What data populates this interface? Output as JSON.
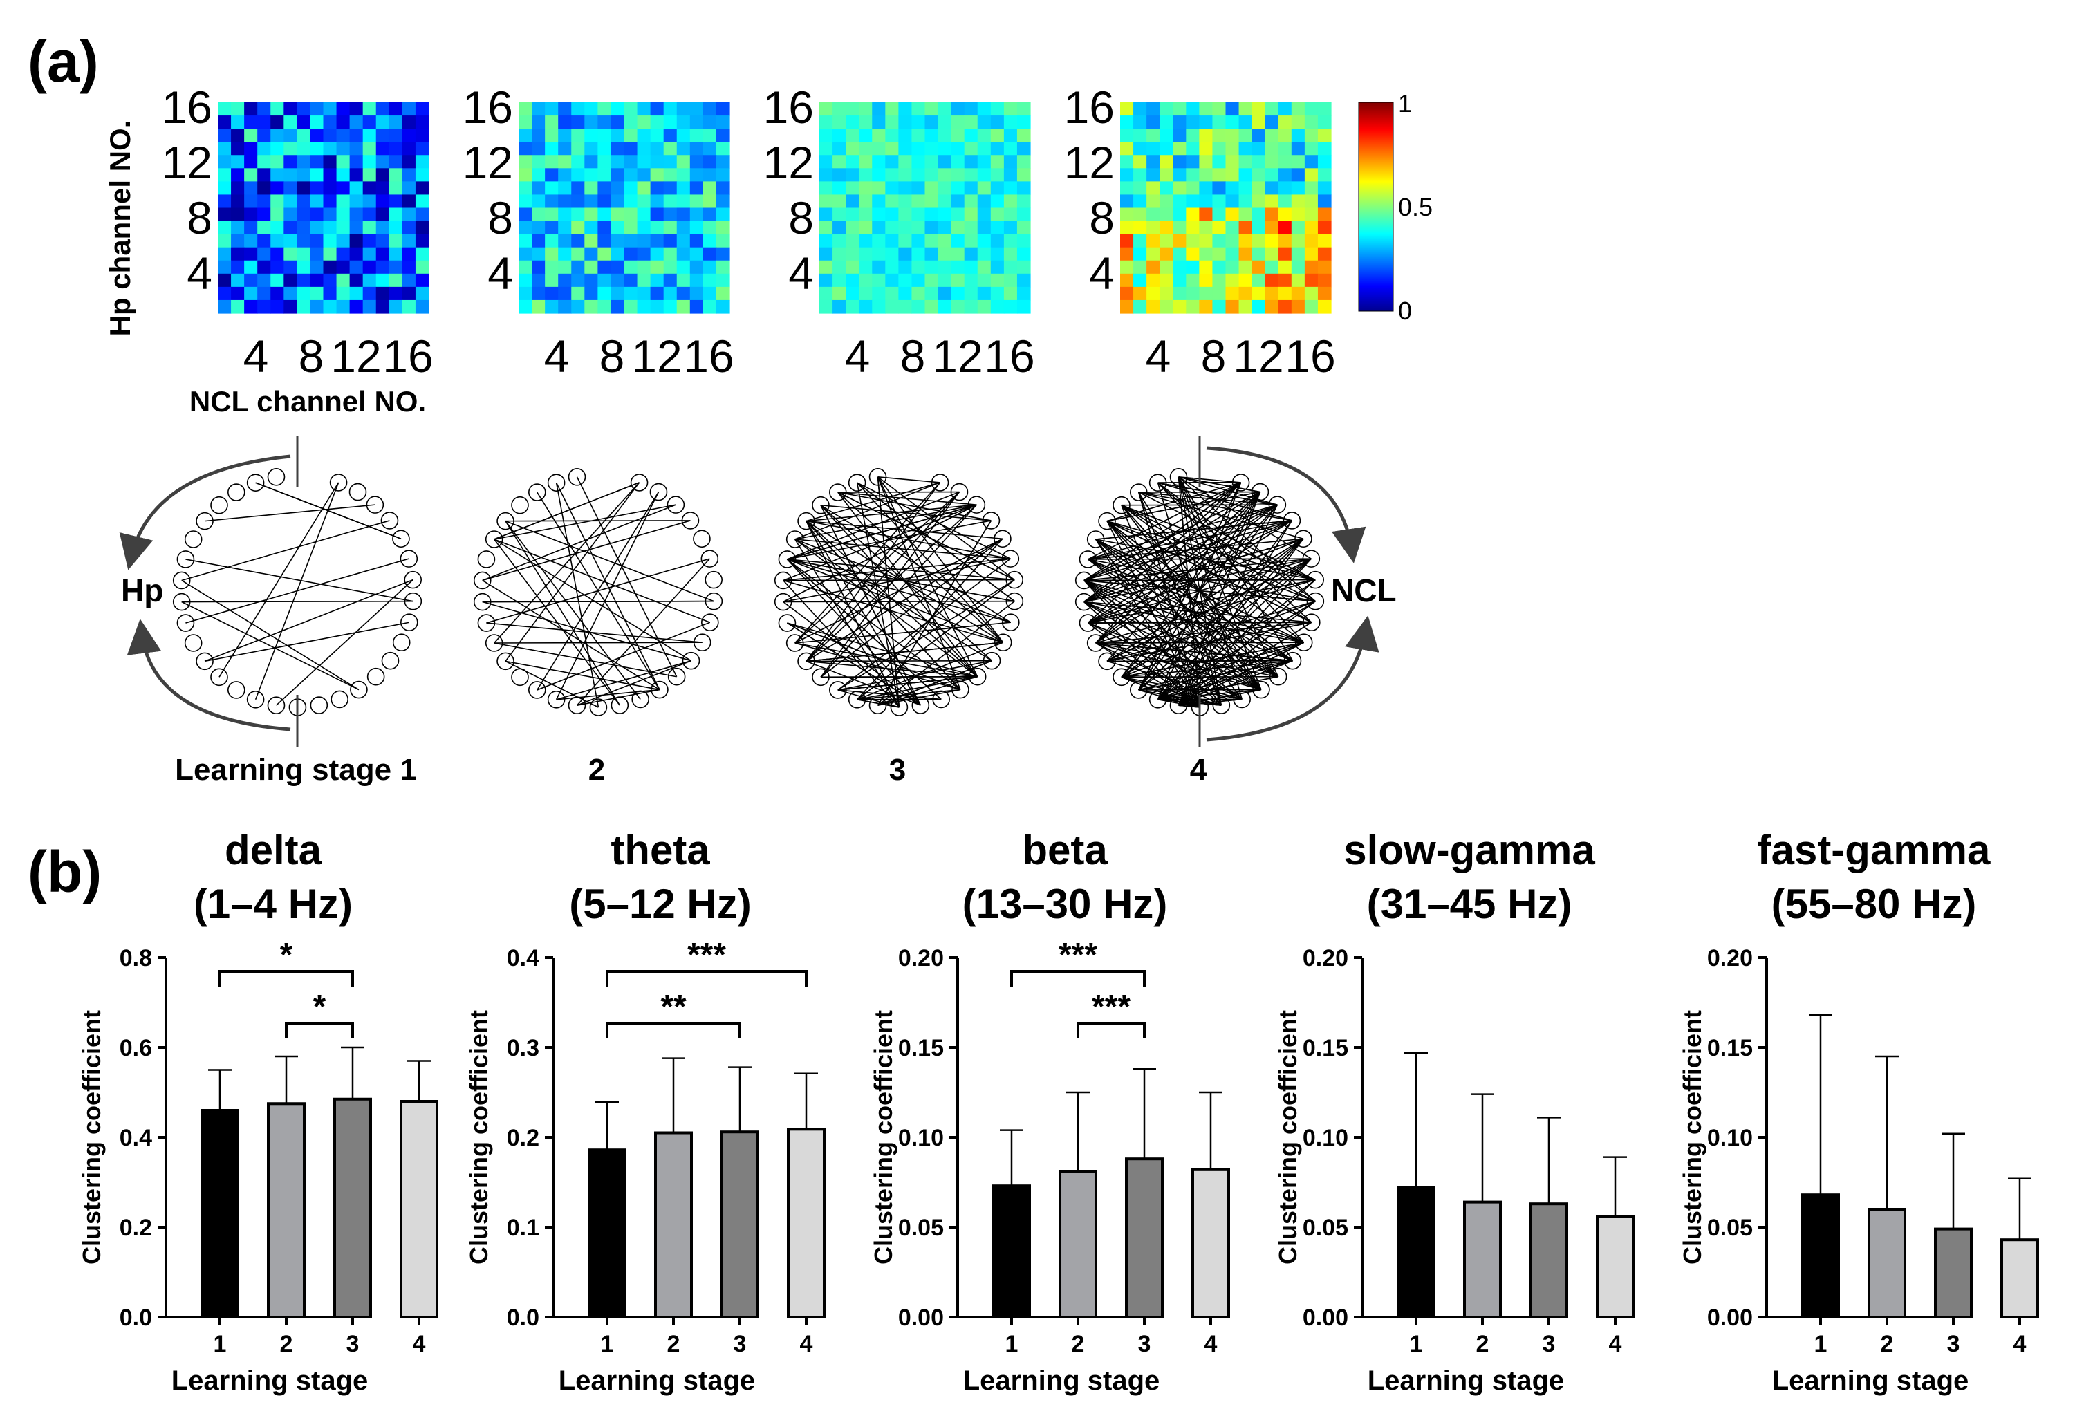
{
  "panel_a": {
    "label": "(a)",
    "y_axis_title": "Hp channel NO.",
    "x_axis_title": "NCL channel NO.",
    "y_ticks": [
      "16",
      "12",
      "8",
      "4"
    ],
    "x_ticks": [
      "4",
      "8",
      "12",
      "16"
    ],
    "colorbar": {
      "max_label": "1",
      "mid_label": "0.5",
      "min_label": "0",
      "colormap": [
        "#00008f",
        "#0000ff",
        "#00ffff",
        "#ffff00",
        "#ff0000",
        "#800000"
      ]
    },
    "matrices": [
      {
        "stage": 1,
        "mean": 0.24,
        "spread": 0.22
      },
      {
        "stage": 2,
        "mean": 0.35,
        "spread": 0.16
      },
      {
        "stage": 3,
        "mean": 0.4,
        "spread": 0.1
      },
      {
        "stage": 4,
        "mean": 0.42,
        "spread": 0.18
      }
    ],
    "networks": [
      {
        "label": "Learning stage 1",
        "edges": 14
      },
      {
        "label": "2",
        "edges": 36
      },
      {
        "label": "3",
        "edges": 120
      },
      {
        "label": "4",
        "edges": 260
      }
    ],
    "left_region": "Hp",
    "right_region": "NCL"
  },
  "panel_b": {
    "label": "(b)"
  },
  "chart_data": [
    {
      "type": "bar",
      "title": "delta",
      "subtitle": "(1–4 Hz)",
      "xlabel": "Learning stage",
      "ylabel": "Clustering coefficient",
      "categories": [
        "1",
        "2",
        "3",
        "4"
      ],
      "values": [
        0.46,
        0.475,
        0.485,
        0.48
      ],
      "errors": [
        0.09,
        0.105,
        0.115,
        0.09
      ],
      "ylim": [
        0,
        0.8
      ],
      "yticks": [
        "0.0",
        "0.2",
        "0.4",
        "0.6",
        "0.8"
      ],
      "significance": [
        {
          "from": 1,
          "to": 3,
          "label": "*"
        },
        {
          "from": 2,
          "to": 3,
          "label": "*"
        }
      ]
    },
    {
      "type": "bar",
      "title": "theta",
      "subtitle": "(5–12 Hz)",
      "xlabel": "Learning stage",
      "ylabel": "Clustering coefficient",
      "categories": [
        "1",
        "2",
        "3",
        "4"
      ],
      "values": [
        0.186,
        0.205,
        0.206,
        0.209
      ],
      "errors": [
        0.053,
        0.083,
        0.072,
        0.062
      ],
      "ylim": [
        0,
        0.4
      ],
      "yticks": [
        "0.0",
        "0.1",
        "0.2",
        "0.3",
        "0.4"
      ],
      "significance": [
        {
          "from": 1,
          "to": 4,
          "label": "***"
        },
        {
          "from": 1,
          "to": 3,
          "label": "**"
        }
      ]
    },
    {
      "type": "bar",
      "title": "beta",
      "subtitle": "(13–30 Hz)",
      "xlabel": "Learning stage",
      "ylabel": "Clustering coefficient",
      "categories": [
        "1",
        "2",
        "3",
        "4"
      ],
      "values": [
        0.073,
        0.081,
        0.088,
        0.082
      ],
      "errors": [
        0.031,
        0.044,
        0.05,
        0.043
      ],
      "ylim": [
        0,
        0.2
      ],
      "yticks": [
        "0.00",
        "0.05",
        "0.10",
        "0.15",
        "0.20"
      ],
      "significance": [
        {
          "from": 1,
          "to": 3,
          "label": "***"
        },
        {
          "from": 2,
          "to": 3,
          "label": "***"
        }
      ]
    },
    {
      "type": "bar",
      "title": "slow-gamma",
      "subtitle": "(31–45 Hz)",
      "xlabel": "Learning stage",
      "ylabel": "Clustering coefficient",
      "categories": [
        "1",
        "2",
        "3",
        "4"
      ],
      "values": [
        0.072,
        0.064,
        0.063,
        0.056
      ],
      "errors": [
        0.075,
        0.06,
        0.048,
        0.033
      ],
      "ylim": [
        0,
        0.2
      ],
      "yticks": [
        "0.00",
        "0.05",
        "0.10",
        "0.15",
        "0.20"
      ],
      "significance": []
    },
    {
      "type": "bar",
      "title": "fast-gamma",
      "subtitle": "(55–80 Hz)",
      "xlabel": "Learning stage",
      "ylabel": "Clustering coefficient",
      "categories": [
        "1",
        "2",
        "3",
        "4"
      ],
      "values": [
        0.068,
        0.06,
        0.049,
        0.043
      ],
      "errors": [
        0.1,
        0.085,
        0.053,
        0.034
      ],
      "ylim": [
        0,
        0.2
      ],
      "yticks": [
        "0.00",
        "0.05",
        "0.10",
        "0.15",
        "0.20"
      ],
      "significance": []
    }
  ],
  "bar_colors": [
    "#000000",
    "#a3a4a8",
    "#7f7f7f",
    "#d9d9d9"
  ]
}
